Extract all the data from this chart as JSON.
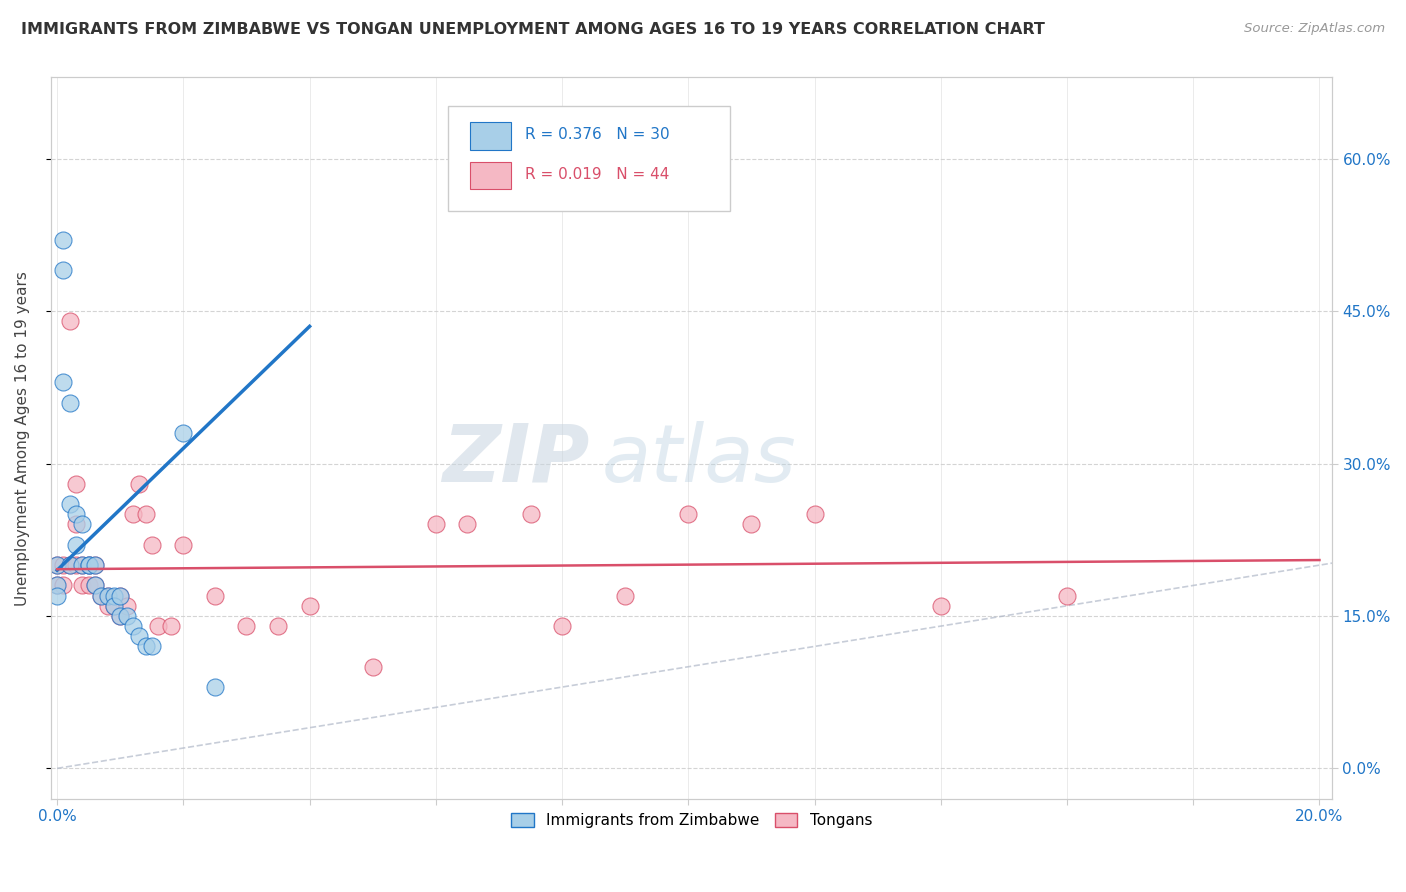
{
  "title": "IMMIGRANTS FROM ZIMBABWE VS TONGAN UNEMPLOYMENT AMONG AGES 16 TO 19 YEARS CORRELATION CHART",
  "source": "Source: ZipAtlas.com",
  "ylabel": "Unemployment Among Ages 16 to 19 years",
  "xlim": [
    -0.001,
    0.202
  ],
  "ylim": [
    -0.03,
    0.68
  ],
  "yticks": [
    0.0,
    0.15,
    0.3,
    0.45,
    0.6
  ],
  "ytick_labels": [
    "0.0%",
    "15.0%",
    "30.0%",
    "45.0%",
    "60.0%"
  ],
  "xticks": [
    0.0,
    0.02,
    0.04,
    0.06,
    0.08,
    0.1,
    0.12,
    0.14,
    0.16,
    0.18,
    0.2
  ],
  "xtick_labels": [
    "0.0%",
    "",
    "",
    "",
    "",
    "",
    "",
    "",
    "",
    "",
    "20.0%"
  ],
  "legend_blue_r": "R = 0.376",
  "legend_blue_n": "N = 30",
  "legend_pink_r": "R = 0.019",
  "legend_pink_n": "N = 44",
  "blue_color": "#a8cfe8",
  "pink_color": "#f5b8c4",
  "blue_line_color": "#2176c7",
  "pink_line_color": "#d94f6a",
  "watermark_zip": "ZIP",
  "watermark_atlas": "atlas",
  "blue_scatter_x": [
    0.0,
    0.0,
    0.0,
    0.001,
    0.001,
    0.001,
    0.002,
    0.002,
    0.002,
    0.003,
    0.003,
    0.004,
    0.004,
    0.005,
    0.005,
    0.006,
    0.006,
    0.007,
    0.008,
    0.009,
    0.009,
    0.01,
    0.01,
    0.011,
    0.012,
    0.013,
    0.014,
    0.015,
    0.02,
    0.025
  ],
  "blue_scatter_y": [
    0.2,
    0.18,
    0.17,
    0.52,
    0.49,
    0.38,
    0.36,
    0.26,
    0.2,
    0.25,
    0.22,
    0.24,
    0.2,
    0.2,
    0.2,
    0.2,
    0.18,
    0.17,
    0.17,
    0.17,
    0.16,
    0.17,
    0.15,
    0.15,
    0.14,
    0.13,
    0.12,
    0.12,
    0.33,
    0.08
  ],
  "pink_scatter_x": [
    0.0,
    0.0,
    0.001,
    0.001,
    0.002,
    0.002,
    0.003,
    0.003,
    0.003,
    0.004,
    0.004,
    0.005,
    0.005,
    0.006,
    0.006,
    0.007,
    0.008,
    0.008,
    0.009,
    0.01,
    0.01,
    0.011,
    0.012,
    0.013,
    0.014,
    0.015,
    0.016,
    0.018,
    0.02,
    0.025,
    0.03,
    0.035,
    0.04,
    0.05,
    0.06,
    0.08,
    0.1,
    0.12,
    0.14,
    0.16,
    0.065,
    0.075,
    0.09,
    0.11
  ],
  "pink_scatter_y": [
    0.2,
    0.18,
    0.2,
    0.18,
    0.44,
    0.2,
    0.28,
    0.24,
    0.2,
    0.2,
    0.18,
    0.2,
    0.18,
    0.2,
    0.18,
    0.17,
    0.17,
    0.16,
    0.16,
    0.17,
    0.15,
    0.16,
    0.25,
    0.28,
    0.25,
    0.22,
    0.14,
    0.14,
    0.22,
    0.17,
    0.14,
    0.14,
    0.16,
    0.1,
    0.24,
    0.14,
    0.25,
    0.25,
    0.16,
    0.17,
    0.24,
    0.25,
    0.17,
    0.24
  ],
  "blue_trendline_x": [
    0.0,
    0.04
  ],
  "blue_trendline_y": [
    0.195,
    0.435
  ],
  "pink_trendline_x": [
    0.0,
    0.2
  ],
  "pink_trendline_y": [
    0.196,
    0.205
  ],
  "ref_line_x": [
    0.0,
    0.65
  ],
  "ref_line_y": [
    0.0,
    0.65
  ]
}
